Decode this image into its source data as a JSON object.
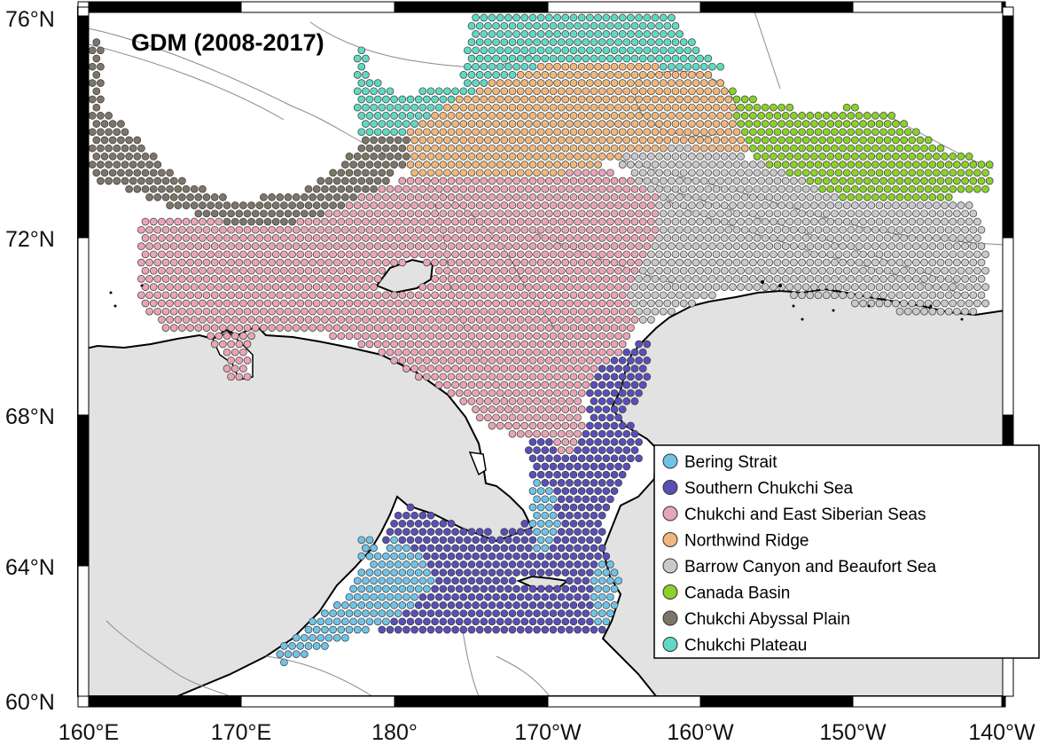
{
  "title": "GDM (2008-2017)",
  "map": {
    "latitude_labels": [
      "76°N",
      "72°N",
      "68°N",
      "64°N",
      "60°N"
    ],
    "longitude_labels": [
      "160°E",
      "170°E",
      "180°",
      "170°W",
      "160°W",
      "150°W",
      "140°W"
    ],
    "extent": {
      "lon_min": 160,
      "lon_max": 220,
      "lat_min": 60,
      "lat_max": 76
    }
  },
  "legend": {
    "position": "bottom-right",
    "items": [
      {
        "label": "Bering Strait",
        "color": "#6fc3e6"
      },
      {
        "label": "Southern Chukchi Sea",
        "color": "#5a4fb8"
      },
      {
        "label": "Chukchi and East Siberian Seas",
        "color": "#e8a5b6"
      },
      {
        "label": "Northwind Ridge",
        "color": "#f0b77c"
      },
      {
        "label": "Barrow Canyon and Beaufort Sea",
        "color": "#c9c9c9"
      },
      {
        "label": "Canada Basin",
        "color": "#8bd12a"
      },
      {
        "label": "Chukchi Abyssal Plain",
        "color": "#7d7668"
      },
      {
        "label": "Chukchi Plateau",
        "color": "#5fd9c3"
      }
    ]
  },
  "colors": {
    "land": "#e2e2e2",
    "ocean": "#ffffff",
    "coast": "#000000",
    "bathymetry": "#8a8a8a"
  }
}
